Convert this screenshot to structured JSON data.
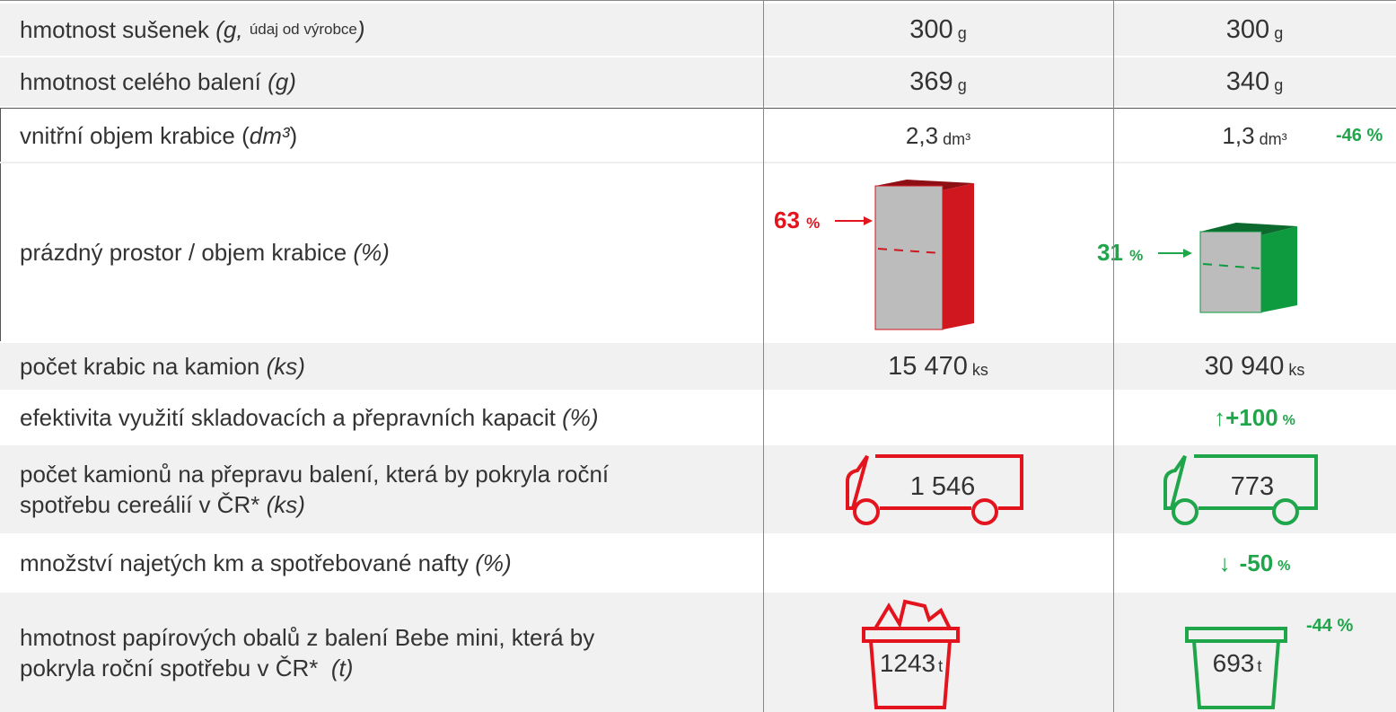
{
  "table": {
    "rows": [
      {
        "label": "hmotnost sušenek",
        "note": "(g,",
        "note_small": "údaj od výrobce",
        "note_end": ")",
        "left": "300",
        "left_unit": "g",
        "right": "300",
        "right_unit": "g"
      },
      {
        "label": "hmotnost celého balení",
        "note": "(g)",
        "left": "369",
        "left_unit": "g",
        "right": "340",
        "right_unit": "g"
      },
      {
        "label": "vnitřní objem krabice (",
        "note": "dm³",
        "note_end": ")",
        "left": "2,3",
        "left_unit": "dm³",
        "right": "1,3",
        "right_unit": "dm³",
        "right_change": "-46 %"
      },
      {
        "label": "prázdný prostor / objem krabice",
        "note": "(%)",
        "left": "63",
        "left_unit": "%",
        "right": "31",
        "right_unit": "%"
      },
      {
        "label": "počet krabic na kamion",
        "note": "(ks)",
        "left": "15 470",
        "left_unit": "ks",
        "right": "30 940",
        "right_unit": "ks"
      },
      {
        "label": "efektivita využití skladovacích a přepravních kapacit",
        "note": "(%)",
        "right_arrow": "↑",
        "right": "+100",
        "right_unit": "%"
      },
      {
        "label": "počet kamionů na přepravu balení, která by pokryla roční spotřebu cereálií v ČR*",
        "note": "(ks)",
        "left": "1 546",
        "right": "773"
      },
      {
        "label": "množství najetých km a spotřebované nafty",
        "note": "(%)",
        "right_arrow": "↓",
        "right": "-50",
        "right_unit": "%"
      },
      {
        "label": "hmotnost papírových obalů z balení Bebe mini, která by pokryla roční spotřebu v ČR*",
        "note": "(t)",
        "left": "1243",
        "left_unit": "t",
        "right": "693",
        "right_unit": "t",
        "right_change": "-44 %"
      }
    ]
  }
}
